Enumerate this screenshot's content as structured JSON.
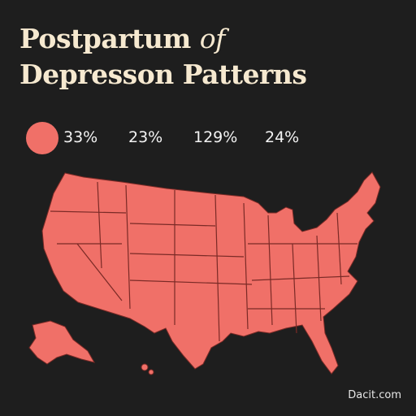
{
  "title": {
    "line1": "Postpartum ",
    "line1_emphasis": "of",
    "line2": "Depresson Patterns"
  },
  "legend": {
    "swatch_color": "#f07068",
    "values": [
      "33%",
      "23%",
      "129%",
      "24%"
    ]
  },
  "map": {
    "fill_color": "#f07068",
    "border_color": "#7a2a26",
    "regions": [
      "contiguous-us",
      "alaska",
      "hawaii"
    ]
  },
  "source": "Dacit.com"
}
